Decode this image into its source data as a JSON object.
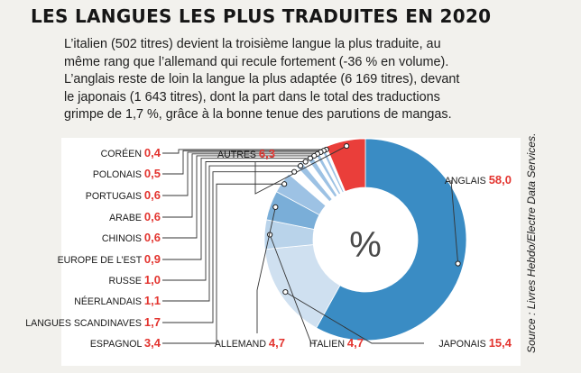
{
  "title": "LES LANGUES LES PLUS TRADUITES EN 2020",
  "lead": [
    "L’italien (502 titres) devient la troisième langue la plus traduite, au",
    "même rang que l’allemand qui recule fortement (-36 % en volume).",
    "L’anglais reste de loin la langue la plus adaptée (6 169 titres), devant",
    "le japonais (1 643 titres), dont la part dans le total des traductions",
    "grimpe de 1,7 %, grâce à la bonne tenue des parutions de mangas."
  ],
  "source": "Source : Livres Hebdo/Electre Data Services.",
  "colors": {
    "anglais": "#3a8cc4",
    "japonais": "#cfe0f0",
    "italien": "#b9d3ea",
    "allemand": "#7aaed8",
    "others_a": "#9dc2e4",
    "others_b": "#ffffff",
    "autres": "#ea3e3a",
    "value_text": "#e3342f"
  },
  "chart_data": {
    "type": "pie",
    "style": "donut",
    "unit": "%",
    "center_label": "%",
    "title": "",
    "slices": [
      {
        "key": "anglais",
        "label": "ANGLAIS",
        "display": "58,0",
        "value": 58.0
      },
      {
        "key": "japonais",
        "label": "JAPONAIS",
        "display": "15,4",
        "value": 15.4
      },
      {
        "key": "italien",
        "label": "ITALIEN",
        "display": "4,7",
        "value": 4.7
      },
      {
        "key": "allemand",
        "label": "ALLEMAND",
        "display": "4,7",
        "value": 4.7
      },
      {
        "key": "espagnol",
        "label": "ESPAGNOL",
        "display": "3,4",
        "value": 3.4
      },
      {
        "key": "scandinaves",
        "label": "LANGUES SCANDINAVES",
        "display": "1,7",
        "value": 1.7
      },
      {
        "key": "neerlandais",
        "label": "NÉERLANDAIS",
        "display": "1,1",
        "value": 1.1
      },
      {
        "key": "russe",
        "label": "RUSSE",
        "display": "1,0",
        "value": 1.0
      },
      {
        "key": "europe_est",
        "label": "EUROPE DE L’EST",
        "display": "0,9",
        "value": 0.9
      },
      {
        "key": "chinois",
        "label": "CHINOIS",
        "display": "0,6",
        "value": 0.6
      },
      {
        "key": "arabe",
        "label": "ARABE",
        "display": "0,6",
        "value": 0.6
      },
      {
        "key": "portugais",
        "label": "PORTUGAIS",
        "display": "0,6",
        "value": 0.6
      },
      {
        "key": "polonais",
        "label": "POLONAIS",
        "display": "0,5",
        "value": 0.5
      },
      {
        "key": "coreen",
        "label": "CORÉEN",
        "display": "0,4",
        "value": 0.4
      },
      {
        "key": "autres",
        "label": "AUTRES",
        "display": "6,3",
        "value": 6.3
      }
    ]
  }
}
